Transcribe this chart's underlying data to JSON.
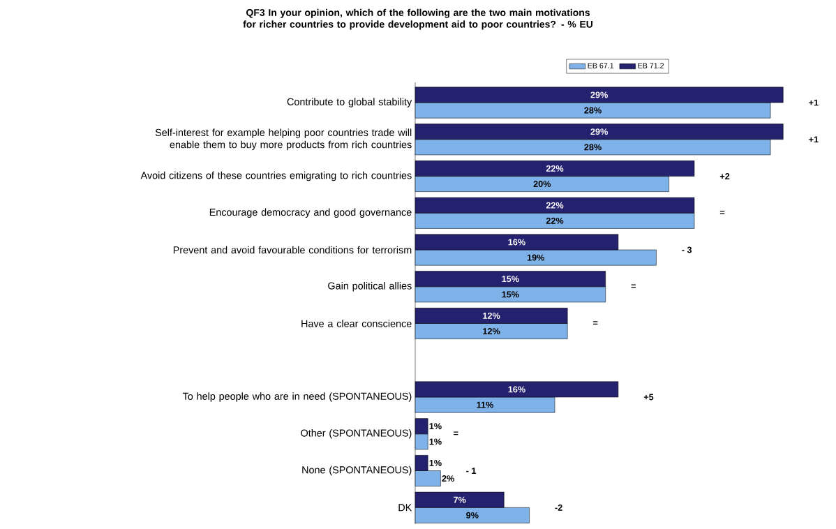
{
  "chart_data": {
    "type": "bar",
    "orientation": "horizontal",
    "title": "QF3 In your opinion, which of the following are the two main motivations for richer countries to provide development aid to poor countries? - % EU",
    "categories": [
      "Contribute to global stability",
      "Self-interest for example helping poor countries trade will enable them to buy more products from rich countries",
      "Avoid citizens of these countries emigrating to rich countries",
      "Encourage democracy and good governance",
      "Prevent and avoid favourable conditions for terrorism",
      "Gain political allies",
      "Have a clear conscience",
      null,
      "To help people who are in need (SPONTANEOUS)",
      "Other (SPONTANEOUS)",
      "None (SPONTANEOUS)",
      "DK"
    ],
    "series": [
      {
        "name": "EB 67.1",
        "color": "#7fb2e8",
        "values": [
          28,
          28,
          20,
          22,
          19,
          15,
          12,
          null,
          11,
          1,
          2,
          9
        ],
        "value_labels": [
          "28%",
          "28%",
          "20%",
          "22%",
          "19%",
          "15%",
          "12%",
          null,
          "11%",
          "1%",
          "2%",
          "9%"
        ]
      },
      {
        "name": "EB 71.2",
        "color": "#24216e",
        "values": [
          29,
          29,
          22,
          22,
          16,
          15,
          12,
          null,
          16,
          1,
          1,
          7
        ],
        "value_labels": [
          "29%",
          "29%",
          "22%",
          "22%",
          "16%",
          "15%",
          "12%",
          null,
          "16%",
          "1%",
          "1%",
          "7%"
        ]
      }
    ],
    "annotations": [
      "+1",
      "+1",
      "+2",
      "=",
      "- 3",
      "=",
      "=",
      "+5",
      "=",
      "- 1",
      "-2"
    ],
    "legend": "top"
  }
}
